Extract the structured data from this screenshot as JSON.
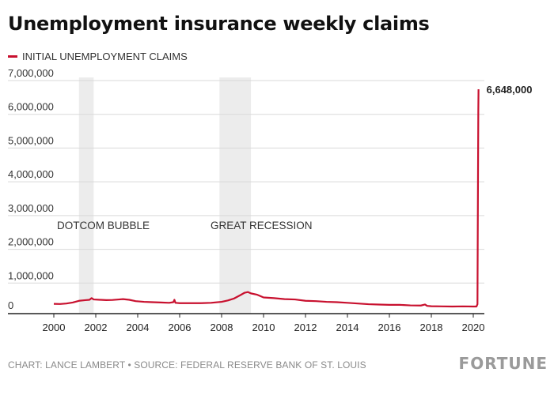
{
  "header": {
    "title": "Unemployment insurance weekly claims"
  },
  "footer": {
    "credit": "CHART: LANCE LAMBERT • SOURCE: FEDERAL RESERVE BANK OF ST. LOUIS",
    "logo": "FORTUNE"
  },
  "colors": {
    "series": "#c8102e",
    "recession_band": "#ececec",
    "grid": "#d9d9d9",
    "axis": "#222222"
  },
  "chart_data": {
    "type": "line",
    "title": "Unemployment insurance weekly claims",
    "xlabel": "",
    "ylabel": "",
    "xlim": [
      2000,
      2020.5
    ],
    "ylim": [
      0,
      7000000
    ],
    "grid": true,
    "legend_position": "top-left",
    "x_ticks": [
      2000,
      2002,
      2004,
      2006,
      2008,
      2010,
      2012,
      2014,
      2016,
      2018,
      2020
    ],
    "x_tick_labels": [
      "2000",
      "2002",
      "2004",
      "2006",
      "2008",
      "2010",
      "2012",
      "2014",
      "2016",
      "2018",
      "2020"
    ],
    "y_ticks": [
      0,
      1000000,
      2000000,
      3000000,
      4000000,
      5000000,
      6000000,
      7000000
    ],
    "y_tick_labels": [
      "0",
      "1,000,000",
      "2,000,000",
      "3,000,000",
      "4,000,000",
      "5,000,000",
      "6,000,000",
      "7,000,000"
    ],
    "shaded_regions": [
      {
        "label": "DOTCOM BUBBLE",
        "x_start": 2001.2,
        "x_end": 2001.9
      },
      {
        "label": "GREAT RECESSION",
        "x_start": 2007.9,
        "x_end": 2009.4
      }
    ],
    "annotations": [
      {
        "text": "6,648,000",
        "x": 2020.25,
        "y": 6648000
      }
    ],
    "series": [
      {
        "name": "INITIAL UNEMPLOYMENT CLAIMS",
        "x": [
          2000.0,
          2000.3,
          2000.6,
          2000.9,
          2001.2,
          2001.5,
          2001.7,
          2001.8,
          2001.9,
          2002.2,
          2002.5,
          2002.8,
          2003.1,
          2003.3,
          2003.6,
          2003.9,
          2004.3,
          2004.7,
          2005.1,
          2005.5,
          2005.7,
          2005.75,
          2005.8,
          2006.0,
          2006.5,
          2007.0,
          2007.5,
          2008.0,
          2008.3,
          2008.6,
          2008.9,
          2009.1,
          2009.25,
          2009.4,
          2009.7,
          2010.0,
          2010.5,
          2011.0,
          2011.5,
          2012.0,
          2012.5,
          2013.0,
          2013.5,
          2014.0,
          2014.5,
          2015.0,
          2015.5,
          2016.0,
          2016.5,
          2017.0,
          2017.5,
          2017.7,
          2017.8,
          2018.0,
          2018.5,
          2019.0,
          2019.5,
          2020.0,
          2020.15,
          2020.2,
          2020.22,
          2020.24,
          2020.25
        ],
        "y": [
          290000,
          285000,
          300000,
          330000,
          380000,
          400000,
          410000,
          460000,
          420000,
          410000,
          400000,
          405000,
          420000,
          430000,
          410000,
          370000,
          350000,
          340000,
          330000,
          320000,
          340000,
          410000,
          320000,
          310000,
          310000,
          310000,
          320000,
          350000,
          390000,
          450000,
          550000,
          620000,
          640000,
          600000,
          560000,
          480000,
          460000,
          430000,
          420000,
          380000,
          370000,
          350000,
          340000,
          320000,
          300000,
          280000,
          270000,
          260000,
          260000,
          245000,
          240000,
          270000,
          230000,
          220000,
          215000,
          210000,
          215000,
          210000,
          210000,
          280000,
          3300000,
          6000000,
          6648000
        ]
      }
    ]
  }
}
